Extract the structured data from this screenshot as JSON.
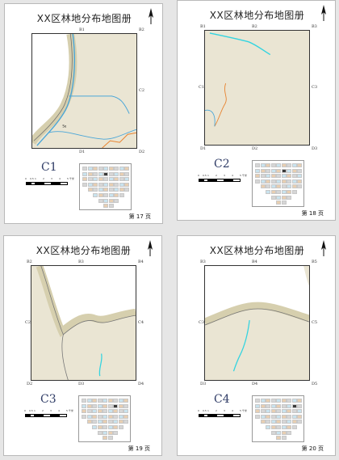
{
  "pages": [
    {
      "title": "XX区林地分布地图册",
      "sheet": "C1",
      "page_label": "第 17 页",
      "labels": {
        "tl": "",
        "tc": "B1",
        "tr": "B2",
        "ml": "",
        "mr": "C2",
        "bl": "",
        "bc": "D1",
        "br": "D2"
      },
      "map_text": "Se",
      "highlight_index": 13
    },
    {
      "title": "XX区林地分布地图册",
      "sheet": "C2",
      "page_label": "第 18 页",
      "labels": {
        "tl": "B1",
        "tc": "B2",
        "tr": "B3",
        "ml": "C1",
        "mr": "C3",
        "bl": "D1",
        "bc": "D2",
        "br": "D3"
      },
      "map_text": "",
      "highlight_index": 14
    },
    {
      "title": "XX区林地分布地图册",
      "sheet": "C3",
      "page_label": "第 19 页",
      "labels": {
        "tl": "B2",
        "tc": "B3",
        "tr": "B4",
        "ml": "C2",
        "mr": "C4",
        "bl": "D2",
        "bc": "D3",
        "br": "D4"
      },
      "map_text": "",
      "highlight_index": 15
    },
    {
      "title": "XX区林地分布地图册",
      "sheet": "C4",
      "page_label": "第 20 页",
      "labels": {
        "tl": "B3",
        "tc": "B4",
        "tr": "B5",
        "ml": "C3",
        "mr": "C5",
        "bl": "D3",
        "bc": "D4",
        "br": "D5"
      },
      "map_text": "",
      "highlight_index": 16
    }
  ],
  "scale_ticks": [
    "0",
    "0.5",
    "1",
    "2",
    "3",
    "4",
    "5 千米"
  ],
  "colors": {
    "land": "#eae5d3",
    "buffer": "#d8d2b4",
    "river": "#4aa6d8",
    "cyan_river": "#33d4e0",
    "orange_line": "#e8822e",
    "road": "#777777",
    "sheet_label": "#2f3c66"
  }
}
